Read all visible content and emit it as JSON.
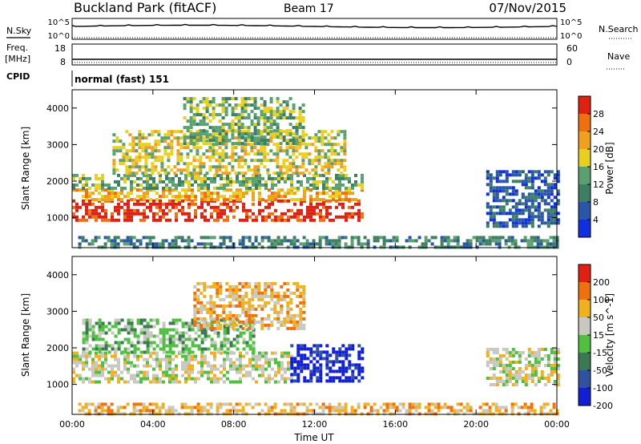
{
  "header": {
    "station": "Buckland Park (fitACF)",
    "beam": "Beam 17",
    "date": "07/Nov/2015"
  },
  "summary_panels": {
    "nsky_label": "N.Sky",
    "nsearch_label": "N.Search",
    "freq_label_line1": "Freq.",
    "freq_label_line2": "[MHz]",
    "nave_label": "Nave",
    "cpid_label": "CPID",
    "cpid_value": "normal (fast) 151",
    "noise_ticks_left": [
      "10^5",
      "10^0"
    ],
    "noise_ticks_right": [
      "10^5",
      "10^0"
    ],
    "freq_ticks_left": [
      "18",
      "8"
    ],
    "freq_ticks_right": [
      "60",
      "0"
    ]
  },
  "chart_data": [
    {
      "type": "heatmap",
      "name": "power",
      "ylabel": "Slant Range [km]",
      "ylim": [
        180,
        4500
      ],
      "y_ticks": [
        1000,
        2000,
        3000,
        4000
      ],
      "xlim_hours": [
        0,
        24
      ],
      "colorbar": {
        "label": "Power [dB]",
        "ticks": [
          "4",
          "8",
          "12",
          "16",
          "20",
          "24",
          "28"
        ],
        "colors": [
          "#1030e0",
          "#2a56a8",
          "#3e7e62",
          "#5aa070",
          "#e8d020",
          "#f0a020",
          "#f07010",
          "#e02010"
        ]
      },
      "regions": [
        {
          "t0": 0.0,
          "t1": 14.3,
          "r0": 950,
          "r1": 1500,
          "level": 7
        },
        {
          "t0": 0.0,
          "t1": 14.3,
          "r0": 1500,
          "r1": 1800,
          "level": 5
        },
        {
          "t0": 0.0,
          "t1": 14.3,
          "r0": 1800,
          "r1": 2200,
          "level": 3
        },
        {
          "t0": 2.0,
          "t1": 13.5,
          "r0": 2200,
          "r1": 3400,
          "level": 4
        },
        {
          "t0": 5.5,
          "t1": 11.5,
          "r0": 3000,
          "r1": 4300,
          "level": 3
        },
        {
          "t0": 0.3,
          "t1": 24.0,
          "r0": 180,
          "r1": 500,
          "level": 2
        },
        {
          "t0": 20.5,
          "t1": 24.0,
          "r0": 750,
          "r1": 2300,
          "level": 1
        }
      ]
    },
    {
      "type": "heatmap",
      "name": "velocity",
      "ylabel": "Slant Range [km]",
      "ylim": [
        180,
        4500
      ],
      "y_ticks": [
        1000,
        2000,
        3000,
        4000
      ],
      "xlabel": "Time UT",
      "xlim_hours": [
        0,
        24
      ],
      "x_ticks": [
        "00:00",
        "04:00",
        "08:00",
        "12:00",
        "16:00",
        "20:00",
        "00:00"
      ],
      "colorbar": {
        "label": "Velocity [m s^-1]",
        "ticks": [
          "200",
          "100",
          "50",
          "15",
          "-15",
          "-50",
          "-100",
          "-200"
        ],
        "colors": [
          "#1020d0",
          "#3050a0",
          "#3a7a50",
          "#50c040",
          "#c8c8c0",
          "#f0b020",
          "#f07010",
          "#e02010"
        ]
      },
      "regions": [
        {
          "t0": 0.0,
          "t1": 10.8,
          "r0": 1100,
          "r1": 1900,
          "level": 4
        },
        {
          "t0": 10.8,
          "t1": 14.3,
          "r0": 1100,
          "r1": 2100,
          "level": 0
        },
        {
          "t0": 0.5,
          "t1": 9.0,
          "r0": 1900,
          "r1": 2800,
          "level": 3
        },
        {
          "t0": 6.0,
          "t1": 11.5,
          "r0": 2500,
          "r1": 3800,
          "level": 5
        },
        {
          "t0": 0.3,
          "t1": 24.0,
          "r0": 180,
          "r1": 500,
          "level": 5
        },
        {
          "t0": 20.5,
          "t1": 24.0,
          "r0": 1000,
          "r1": 2000,
          "level": 4
        }
      ]
    }
  ],
  "colors": {
    "axis": "#000000",
    "background": "#ffffff"
  }
}
